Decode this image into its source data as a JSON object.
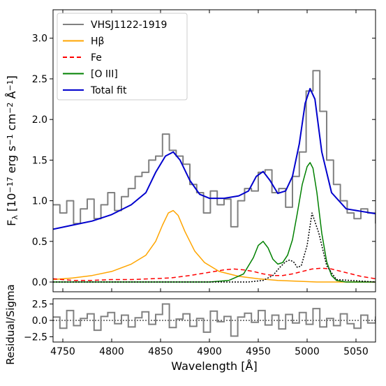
{
  "chart_data": [
    {
      "type": "line",
      "panel": "main",
      "ylabel_html": "Fλ [10⁻¹⁷ erg s⁻¹ cm⁻² Å⁻¹]",
      "ylabel_parts": {
        "f": "F",
        "sub": "λ",
        "rest": " [10",
        "e1": "−17",
        "mid": " erg s",
        "e2": "−1",
        "mid2": " cm",
        "e3": "−2",
        "mid3": " Å",
        "e4": "−1",
        "end": "]"
      },
      "xlim": [
        4740,
        5070
      ],
      "ylim": [
        -0.12,
        3.35
      ],
      "yticks": [
        "0.0",
        "0.5",
        "1.0",
        "1.5",
        "2.0",
        "2.5",
        "3.0"
      ],
      "ytick_values": [
        0,
        0.5,
        1.0,
        1.5,
        2.0,
        2.5,
        3.0
      ],
      "legend_position": "top-left",
      "legend": [
        {
          "label": "VHSJ1122-1919",
          "color": "#808080",
          "style": "solid"
        },
        {
          "label": "Hβ",
          "color": "#ffa500",
          "style": "solid"
        },
        {
          "label": "Fe",
          "color": "#ff0000",
          "style": "dashed"
        },
        {
          "label": "[O III]",
          "color": "#008000",
          "style": "solid"
        },
        {
          "label": "Total fit",
          "color": "#0000cd",
          "style": "solid"
        }
      ],
      "series": [
        {
          "name": "VHSJ1122-1919",
          "color": "#808080",
          "x": [
            4740,
            4747,
            4754,
            4761,
            4768,
            4775,
            4782,
            4789,
            4796,
            4803,
            4810,
            4817,
            4824,
            4831,
            4838,
            4845,
            4852,
            4859,
            4866,
            4873,
            4880,
            4887,
            4894,
            4901,
            4908,
            4915,
            4922,
            4929,
            4936,
            4943,
            4950,
            4957,
            4964,
            4971,
            4978,
            4985,
            4992,
            4999,
            5006,
            5013,
            5020,
            5027,
            5034,
            5041,
            5048,
            5055,
            5062,
            5070
          ],
          "y": [
            0.95,
            0.85,
            1.0,
            0.72,
            0.9,
            1.02,
            0.78,
            0.95,
            1.1,
            0.88,
            1.05,
            1.15,
            1.3,
            1.35,
            1.5,
            1.55,
            1.82,
            1.62,
            1.55,
            1.45,
            1.2,
            1.1,
            0.85,
            1.12,
            0.95,
            1.02,
            0.68,
            1.0,
            1.15,
            1.12,
            1.35,
            1.38,
            1.1,
            1.15,
            0.92,
            1.3,
            1.6,
            2.35,
            2.6,
            2.1,
            1.5,
            1.2,
            1.0,
            0.85,
            0.78,
            0.9,
            0.85,
            0.72
          ]
        },
        {
          "name": "Total fit",
          "color": "#0000cd",
          "x": [
            4740,
            4760,
            4780,
            4800,
            4820,
            4835,
            4845,
            4855,
            4863,
            4870,
            4880,
            4890,
            4900,
            4915,
            4930,
            4940,
            4948,
            4955,
            4962,
            4970,
            4978,
            4985,
            4992,
            4998,
            5003,
            5008,
            5015,
            5025,
            5040,
            5055,
            5070
          ],
          "y": [
            0.65,
            0.7,
            0.75,
            0.83,
            0.95,
            1.1,
            1.35,
            1.55,
            1.6,
            1.5,
            1.25,
            1.08,
            1.03,
            1.03,
            1.06,
            1.12,
            1.3,
            1.36,
            1.25,
            1.09,
            1.12,
            1.3,
            1.7,
            2.2,
            2.38,
            2.25,
            1.6,
            1.1,
            0.9,
            0.87,
            0.84
          ]
        },
        {
          "name": "Hβ",
          "color": "#ffa500",
          "x": [
            4740,
            4760,
            4780,
            4800,
            4820,
            4835,
            4845,
            4852,
            4858,
            4863,
            4868,
            4875,
            4885,
            4895,
            4910,
            4930,
            4950,
            4970,
            4990,
            5010,
            5030,
            5050,
            5070
          ],
          "y": [
            0.03,
            0.05,
            0.08,
            0.13,
            0.22,
            0.33,
            0.5,
            0.7,
            0.85,
            0.88,
            0.82,
            0.62,
            0.38,
            0.24,
            0.13,
            0.07,
            0.04,
            0.02,
            0.01,
            0.0,
            0.0,
            0.0,
            0.0
          ]
        },
        {
          "name": "Fe",
          "color": "#ff0000",
          "x": [
            4740,
            4760,
            4780,
            4800,
            4820,
            4840,
            4860,
            4880,
            4900,
            4915,
            4925,
            4935,
            4945,
            4955,
            4965,
            4975,
            4985,
            4995,
            5005,
            5015,
            5025,
            5035,
            5045,
            5055,
            5070
          ],
          "y": [
            0.04,
            0.02,
            0.02,
            0.03,
            0.03,
            0.04,
            0.05,
            0.08,
            0.12,
            0.15,
            0.16,
            0.15,
            0.13,
            0.1,
            0.08,
            0.08,
            0.1,
            0.13,
            0.16,
            0.17,
            0.16,
            0.13,
            0.1,
            0.07,
            0.04
          ]
        },
        {
          "name": "[O III]",
          "color": "#008000",
          "x": [
            4740,
            4900,
            4920,
            4935,
            4945,
            4950,
            4955,
            4960,
            4965,
            4970,
            4975,
            4980,
            4985,
            4990,
            4995,
            5000,
            5003,
            5006,
            5010,
            5015,
            5020,
            5025,
            5030,
            5040,
            5070
          ],
          "y": [
            0.0,
            0.0,
            0.02,
            0.1,
            0.3,
            0.45,
            0.5,
            0.42,
            0.28,
            0.22,
            0.24,
            0.33,
            0.52,
            0.85,
            1.2,
            1.42,
            1.47,
            1.4,
            1.1,
            0.6,
            0.25,
            0.08,
            0.02,
            0.0,
            0.0
          ]
        },
        {
          "name": "dotted-component",
          "color": "#000000",
          "x": [
            4740,
            4920,
            4940,
            4955,
            4965,
            4972,
            4978,
            4982,
            4986,
            4990,
            4994,
            5000,
            5005,
            5012,
            5020,
            5030,
            5070
          ],
          "y": [
            0.0,
            0.0,
            0.0,
            0.02,
            0.08,
            0.18,
            0.25,
            0.27,
            0.25,
            0.18,
            0.2,
            0.45,
            0.85,
            0.6,
            0.2,
            0.03,
            0.0
          ]
        }
      ]
    },
    {
      "type": "line",
      "panel": "residual",
      "xlabel": "Wavelength [Å]",
      "ylabel": "Residual/Sigma",
      "xlim": [
        4740,
        5070
      ],
      "ylim": [
        -3.3,
        3.3
      ],
      "xticks": [
        "4750",
        "4800",
        "4850",
        "4900",
        "4950",
        "5000",
        "5050"
      ],
      "xtick_values": [
        4750,
        4800,
        4850,
        4900,
        4950,
        5000,
        5050
      ],
      "yticks": [
        "2.5",
        "0.0",
        "−2.5"
      ],
      "ytick_values": [
        2.5,
        0,
        -2.5
      ],
      "series": [
        {
          "name": "residual",
          "color": "#808080",
          "x": [
            4740,
            4747,
            4754,
            4761,
            4768,
            4775,
            4782,
            4789,
            4796,
            4803,
            4810,
            4817,
            4824,
            4831,
            4838,
            4845,
            4852,
            4859,
            4866,
            4873,
            4880,
            4887,
            4894,
            4901,
            4908,
            4915,
            4922,
            4929,
            4936,
            4943,
            4950,
            4957,
            4964,
            4971,
            4978,
            4985,
            4992,
            4999,
            5006,
            5013,
            5020,
            5027,
            5034,
            5041,
            5048,
            5055,
            5062,
            5070
          ],
          "y": [
            0.5,
            -1.2,
            1.5,
            -0.8,
            0.3,
            1.0,
            -1.5,
            0.6,
            1.2,
            -0.5,
            0.8,
            -1.0,
            0.4,
            1.3,
            -0.6,
            0.9,
            2.5,
            -1.1,
            0.2,
            1.0,
            -0.9,
            0.3,
            -1.8,
            1.4,
            -0.2,
            0.6,
            -2.4,
            0.5,
            1.1,
            -0.3,
            1.5,
            -0.7,
            0.8,
            -1.3,
            0.9,
            -0.4,
            1.2,
            -0.6,
            1.8,
            -1.0,
            0.3,
            -0.8,
            1.0,
            -0.5,
            -1.2,
            0.8,
            -0.4,
            0.6
          ]
        }
      ]
    }
  ]
}
